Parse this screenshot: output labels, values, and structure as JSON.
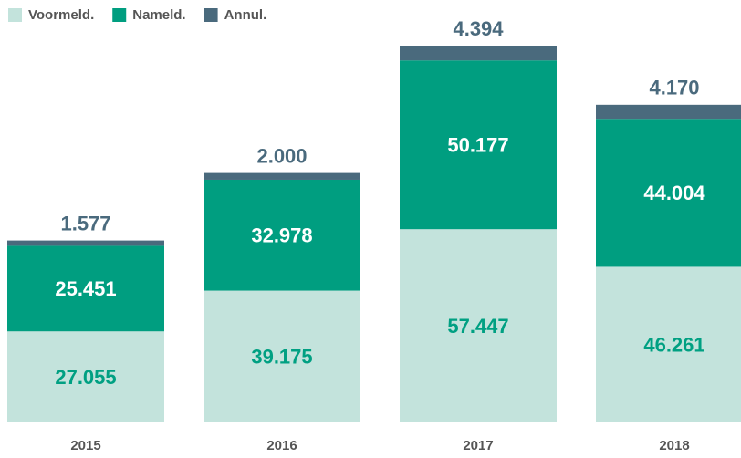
{
  "chart_data": {
    "type": "stacked-bar",
    "categories": [
      "2015",
      "2016",
      "2017",
      "2018"
    ],
    "series": [
      {
        "name": "Voormeld.",
        "color": "#c3e3dc",
        "values": [
          27055,
          39175,
          57447,
          46261
        ],
        "value_labels": [
          "27.055",
          "39.175",
          "57.447",
          "46.261"
        ]
      },
      {
        "name": "Nameld.",
        "color": "#009e80",
        "values": [
          25451,
          32978,
          50177,
          44004
        ],
        "value_labels": [
          "25.451",
          "32.978",
          "50.177",
          "44.004"
        ]
      },
      {
        "name": "Annul.",
        "color": "#4a6a7d",
        "values": [
          1577,
          2000,
          4394,
          4170
        ],
        "value_labels": [
          "1.577",
          "2.000",
          "4.394",
          "4.170"
        ]
      }
    ],
    "legend": "top-left"
  }
}
